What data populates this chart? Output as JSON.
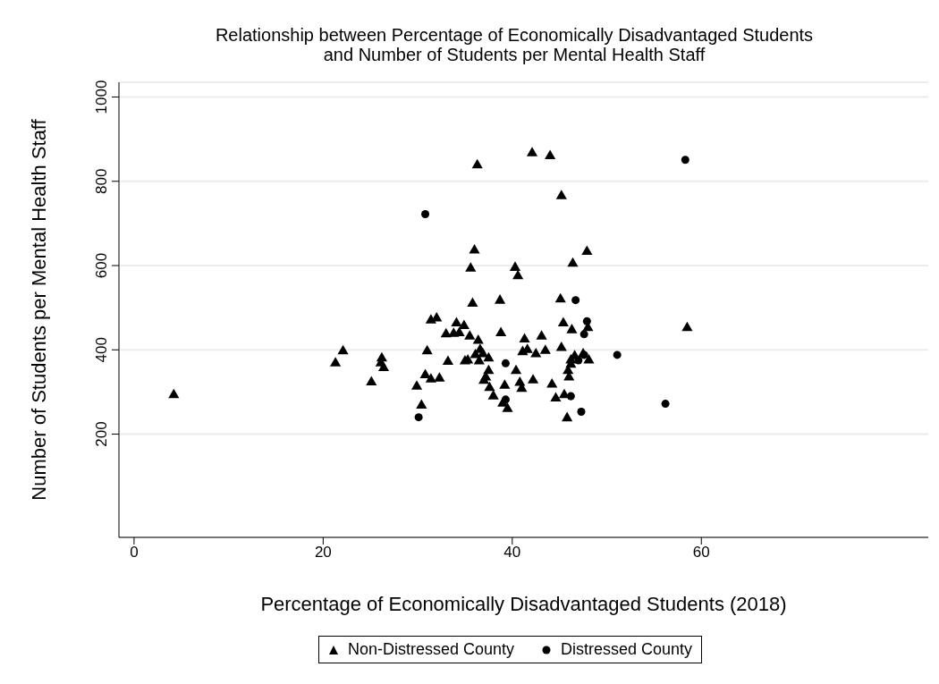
{
  "chart_data": {
    "type": "scatter",
    "title": "Relationship between Percentage of Economically Disadvantaged Students and Number of Students per Mental Health Staff",
    "xlabel": "Percentage of Economically Disadvantaged Students (2018)",
    "ylabel": "Number of Students per Mental Health Staff",
    "xlim": [
      -1.6,
      84
    ],
    "xticks": [
      0,
      20,
      40,
      60
    ],
    "ylim": [
      -45,
      1035
    ],
    "yticks": [
      200,
      400,
      600,
      800,
      1000
    ],
    "grid": "y",
    "legend": "bottom",
    "series": [
      {
        "name": "Non-Distressed County",
        "color": "#000000",
        "marker": "triangle",
        "x": [
          4.2,
          21.3,
          22.1,
          25.1,
          26.2,
          26.4,
          26.1,
          29.9,
          30.4,
          30.8,
          31.0,
          31.4,
          32.0,
          31.4,
          32.3,
          33.0,
          33.2,
          33.8,
          34.1,
          34.4,
          34.9,
          35.0,
          35.3,
          35.5,
          35.6,
          35.8,
          36.0,
          36.1,
          36.3,
          36.4,
          36.5,
          36.6,
          36.9,
          37.0,
          37.2,
          37.5,
          37.5,
          37.6,
          38.0,
          38.7,
          38.8,
          39.0,
          39.2,
          39.5,
          40.3,
          40.4,
          40.6,
          40.8,
          41.0,
          41.1,
          41.3,
          41.6,
          42.1,
          42.2,
          42.5,
          43.1,
          43.5,
          44.0,
          44.2,
          44.6,
          45.1,
          45.2,
          45.2,
          45.4,
          45.5,
          45.8,
          45.9,
          46.0,
          46.2,
          46.3,
          46.4,
          46.6,
          46.2,
          47.5,
          47.9,
          48.0,
          48.1,
          58.5
        ],
        "values": [
          293,
          368,
          397,
          323,
          380,
          357,
          368,
          313,
          268,
          340,
          397,
          470,
          475,
          330,
          332,
          437,
          372,
          438,
          463,
          440,
          457,
          373,
          375,
          432,
          593,
          510,
          636,
          388,
          838,
          422,
          373,
          400,
          390,
          327,
          335,
          380,
          350,
          310,
          290,
          517,
          440,
          273,
          315,
          260,
          595,
          350,
          575,
          322,
          308,
          395,
          425,
          400,
          867,
          328,
          390,
          432,
          398,
          860,
          318,
          285,
          520,
          765,
          405,
          463,
          293,
          238,
          350,
          335,
          375,
          447,
          605,
          385,
          365,
          390,
          633,
          452,
          375,
          452
        ]
      },
      {
        "name": "Distressed County",
        "color": "#000000",
        "marker": "circle",
        "x": [
          30.1,
          30.8,
          39.3,
          39.3,
          46.2,
          46.7,
          47.0,
          47.3,
          47.6,
          47.9,
          47.6,
          51.1,
          56.2,
          58.3
        ],
        "values": [
          240,
          722,
          368,
          282,
          290,
          518,
          375,
          253,
          437,
          468,
          388,
          388,
          272,
          851
        ]
      }
    ]
  }
}
